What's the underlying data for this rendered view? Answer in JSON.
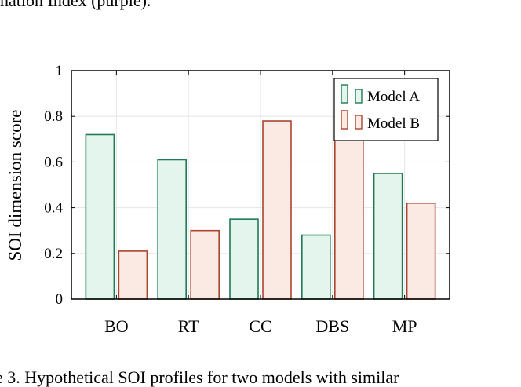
{
  "page": {
    "top_text": "nation Index (purple).",
    "caption": "e 3. Hypothetical SOI profiles for two models with similar"
  },
  "colors": {
    "model_a_fill": "#e3f5ec",
    "model_a_stroke": "#1f7a55",
    "model_b_fill": "#fbe9e4",
    "model_b_stroke": "#a8462e",
    "grid": "#e6e6e6",
    "axis": "#000000"
  },
  "chart_data": {
    "type": "bar",
    "categories": [
      "BO",
      "RT",
      "CC",
      "DBS",
      "MP"
    ],
    "series": [
      {
        "name": "Model A",
        "values": [
          0.72,
          0.61,
          0.35,
          0.28,
          0.55
        ]
      },
      {
        "name": "Model B",
        "values": [
          0.21,
          0.3,
          0.78,
          0.71,
          0.42
        ]
      }
    ],
    "ylabel": "SOI dimension score",
    "xlabel": "",
    "ylim": [
      0,
      1
    ],
    "yticks": [
      0,
      0.2,
      0.4,
      0.6,
      0.8,
      1
    ],
    "ytick_labels": [
      "0",
      "0.2",
      "0.4",
      "0.6",
      "0.8",
      "1"
    ],
    "grid": true,
    "legend_position": "top-right"
  }
}
